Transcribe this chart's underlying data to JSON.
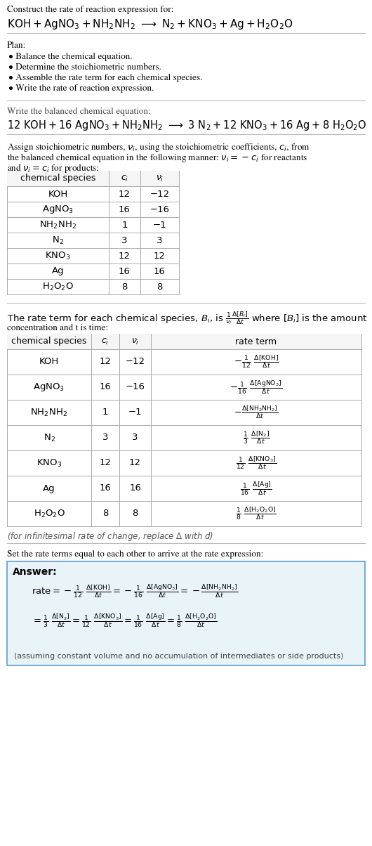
{
  "bg_color": "#ffffff",
  "text_color": "#000000",
  "table_border_color": "#aaaaaa",
  "header_color": "#f5f5f5",
  "answer_box_color": "#e8f4f8",
  "answer_box_border": "#5b9bd5",
  "plan_items": [
    "• Balance the chemical equation.",
    "• Determine the stoichiometric numbers.",
    "• Assemble the rate term for each chemical species.",
    "• Write the rate of reaction expression."
  ],
  "table1_rows": [
    [
      "KOH",
      "12",
      "−12"
    ],
    [
      "AgNO₃",
      "16",
      "−16"
    ],
    [
      "NH₂NH₂",
      "1",
      "−1"
    ],
    [
      "N₂",
      "3",
      "3"
    ],
    [
      "KNO₃",
      "12",
      "12"
    ],
    [
      "Ag",
      "16",
      "16"
    ],
    [
      "H₂O₂O",
      "8",
      "8"
    ]
  ],
  "table2_rows": [
    [
      "KOH",
      "12",
      "−12"
    ],
    [
      "AgNO₃",
      "16",
      "−16"
    ],
    [
      "NH₂NH₂",
      "1",
      "−1"
    ],
    [
      "N₂",
      "3",
      "3"
    ],
    [
      "KNO₃",
      "12",
      "12"
    ],
    [
      "Ag",
      "16",
      "16"
    ],
    [
      "H₂O₂O",
      "8",
      "8"
    ]
  ]
}
